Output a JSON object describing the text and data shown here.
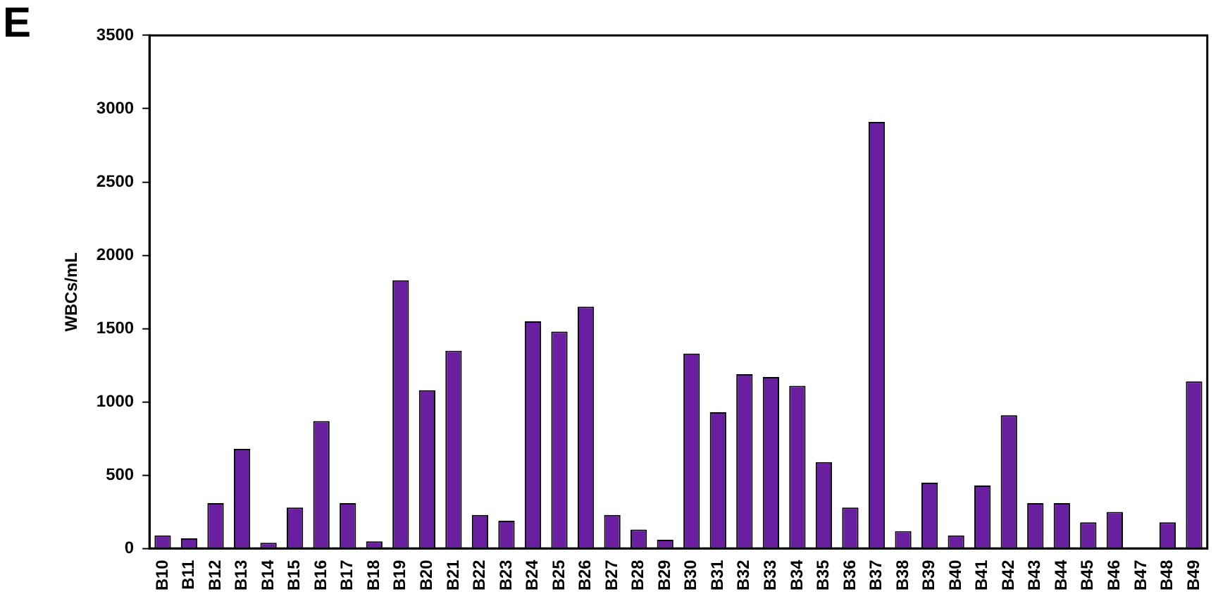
{
  "chart_data": {
    "type": "bar",
    "ylabel": "WBCs/mL",
    "annotations": [
      "E"
    ],
    "categories": [
      "B10",
      "B11",
      "B12",
      "B13",
      "B14",
      "B15",
      "B16",
      "B17",
      "B18",
      "B19",
      "B20",
      "B21",
      "B22",
      "B23",
      "B24",
      "B25",
      "B26",
      "B27",
      "B28",
      "B29",
      "B30",
      "B31",
      "B32",
      "B33",
      "B34",
      "B35",
      "B36",
      "B37",
      "B38",
      "B39",
      "B40",
      "B41",
      "B42",
      "B43",
      "B44",
      "B45",
      "B46",
      "B47",
      "B48",
      "B49"
    ],
    "values": [
      90,
      70,
      310,
      680,
      40,
      280,
      870,
      310,
      50,
      1830,
      1080,
      1350,
      230,
      190,
      1550,
      1480,
      1650,
      230,
      130,
      60,
      1330,
      930,
      1190,
      1170,
      1110,
      590,
      280,
      2910,
      120,
      450,
      90,
      430,
      910,
      310,
      310,
      180,
      250,
      0,
      180,
      1140
    ],
    "color": "#6a1fa0",
    "ylim": [
      0,
      3500
    ],
    "yticks": [
      0,
      500,
      1000,
      1500,
      2000,
      2500,
      3000,
      3500
    ],
    "grid": false,
    "legend": false
  }
}
